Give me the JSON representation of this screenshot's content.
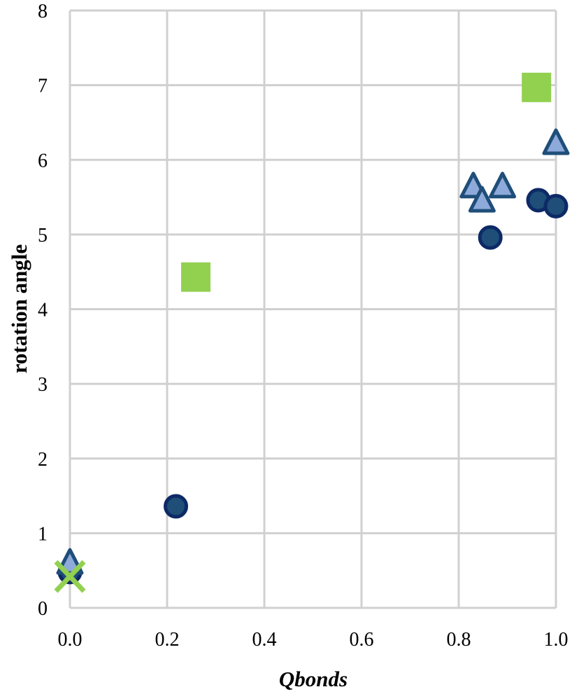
{
  "chart_data": {
    "type": "scatter",
    "title": "",
    "xlabel": "Qbonds",
    "ylabel": "rotation angle",
    "xlim": [
      0,
      1
    ],
    "ylim": [
      0,
      8
    ],
    "grid": true,
    "legend": "none",
    "x_ticks": [
      "0.0",
      "0.2",
      "0.4",
      "0.6",
      "0.8",
      "1.0"
    ],
    "y_ticks": [
      "0",
      "1",
      "2",
      "3",
      "4",
      "5",
      "6",
      "7",
      "8"
    ],
    "series": [
      {
        "name": "circles",
        "marker": "circle",
        "fill": "#1f4e79",
        "stroke": "#0d2a66",
        "points": [
          [
            0.0,
            0.48
          ],
          [
            0.218,
            1.36
          ],
          [
            0.865,
            4.96
          ],
          [
            0.964,
            5.46
          ],
          [
            1.0,
            5.38
          ]
        ]
      },
      {
        "name": "triangles",
        "marker": "triangle",
        "fill": "#8eaadb",
        "stroke": "#1f4e79",
        "points": [
          [
            0.0,
            0.58
          ],
          [
            0.83,
            5.62
          ],
          [
            0.848,
            5.43
          ],
          [
            0.89,
            5.62
          ],
          [
            1.0,
            6.2
          ]
        ]
      },
      {
        "name": "squares",
        "marker": "square",
        "fill": "#92d050",
        "stroke": "#92d050",
        "points": [
          [
            0.259,
            4.43
          ],
          [
            0.96,
            6.97
          ]
        ]
      },
      {
        "name": "crosses",
        "marker": "x",
        "fill": "#92d050",
        "stroke": "#92d050",
        "points": [
          [
            0.0,
            0.42
          ]
        ]
      }
    ]
  }
}
